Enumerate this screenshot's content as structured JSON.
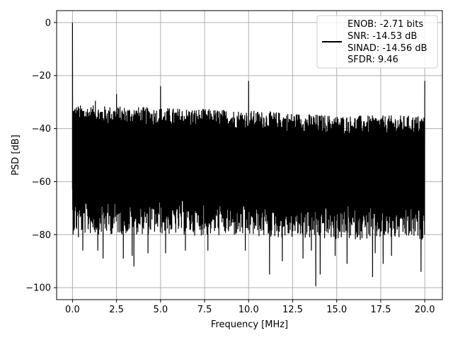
{
  "chart_data": {
    "type": "line",
    "title": "",
    "xlabel": "Frequency [MHz]",
    "ylabel": "PSD [dB]",
    "xlim": [
      -0.9,
      21.0
    ],
    "ylim": [
      -104.5,
      4.5
    ],
    "xticks": [
      0.0,
      2.5,
      5.0,
      7.5,
      10.0,
      12.5,
      15.0,
      17.5,
      20.0
    ],
    "xtick_labels": [
      "0.0",
      "2.5",
      "5.0",
      "7.5",
      "10.0",
      "12.5",
      "15.0",
      "17.5",
      "20.0"
    ],
    "yticks": [
      0,
      -20,
      -40,
      -60,
      -80,
      -100
    ],
    "ytick_labels": [
      "0",
      "−20",
      "−40",
      "−60",
      "−80",
      "−100"
    ],
    "grid": true,
    "legend_placement": "top-right",
    "line_color": "#000000",
    "grid_color": "#b0b0b0",
    "legend_lines": [
      "ENOB: -2.71 bits",
      "SNR: -14.53 dB",
      "SINAD: -14.56 dB",
      "SFDR: 9.46"
    ],
    "series": [
      {
        "noise_floor_envelope": {
          "x": [
            0.0,
            5.0,
            10.0,
            15.0,
            20.0
          ],
          "upper": [
            -31,
            -32,
            -33,
            -35,
            -35
          ],
          "lower": [
            -80,
            -80,
            -81,
            -82,
            -82
          ]
        },
        "spikes": [
          {
            "x": 0.0,
            "y": 0
          },
          {
            "x": 1.3,
            "y": -29.5
          },
          {
            "x": 2.5,
            "y": -27
          },
          {
            "x": 5.0,
            "y": -24
          },
          {
            "x": 10.0,
            "y": -22
          },
          {
            "x": 20.0,
            "y": -22
          }
        ],
        "dips": [
          {
            "x": 0.05,
            "y": -74
          },
          {
            "x": 0.35,
            "y": -81
          },
          {
            "x": 0.6,
            "y": -86
          },
          {
            "x": 1.45,
            "y": -86
          },
          {
            "x": 1.75,
            "y": -89
          },
          {
            "x": 2.9,
            "y": -89
          },
          {
            "x": 3.4,
            "y": -88
          },
          {
            "x": 3.5,
            "y": -92
          },
          {
            "x": 4.3,
            "y": -87
          },
          {
            "x": 5.3,
            "y": -87
          },
          {
            "x": 6.4,
            "y": -86
          },
          {
            "x": 7.7,
            "y": -86
          },
          {
            "x": 9.8,
            "y": -86
          },
          {
            "x": 11.2,
            "y": -95
          },
          {
            "x": 11.9,
            "y": -90
          },
          {
            "x": 13.1,
            "y": -89
          },
          {
            "x": 13.55,
            "y": -86
          },
          {
            "x": 13.8,
            "y": -99.5
          },
          {
            "x": 14.05,
            "y": -95
          },
          {
            "x": 14.9,
            "y": -88
          },
          {
            "x": 15.6,
            "y": -91
          },
          {
            "x": 17.05,
            "y": -96
          },
          {
            "x": 17.2,
            "y": -87
          },
          {
            "x": 17.65,
            "y": -91
          },
          {
            "x": 18.1,
            "y": -88
          },
          {
            "x": 19.8,
            "y": -94
          },
          {
            "x": 20.0,
            "y": -80
          }
        ]
      }
    ]
  }
}
